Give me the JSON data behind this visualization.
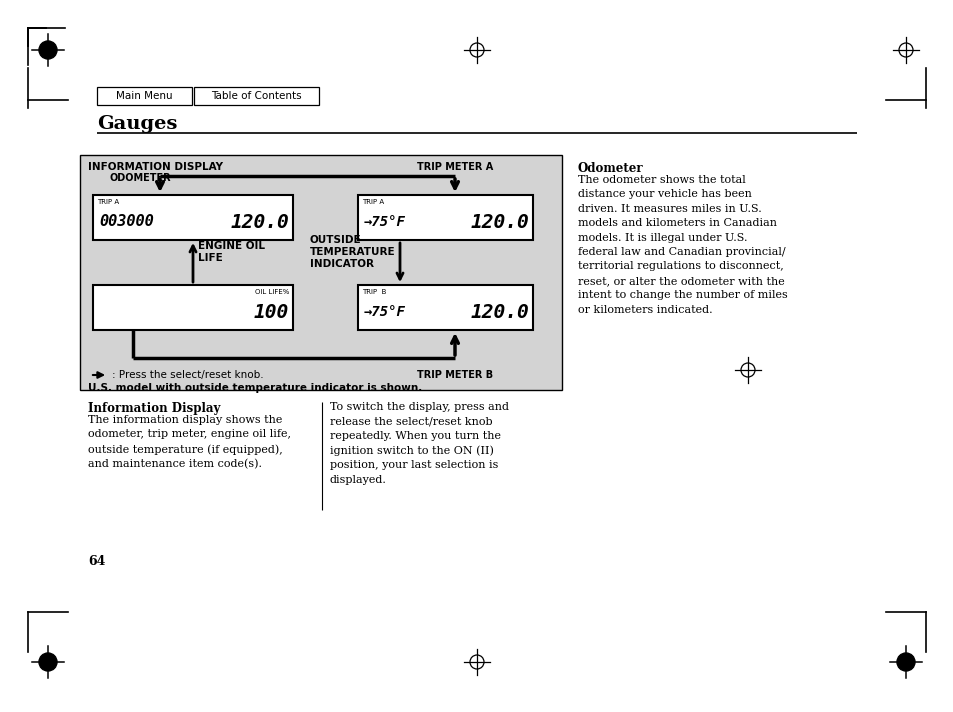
{
  "nav_buttons": [
    "Main Menu",
    "Table of Contents"
  ],
  "page_number": "64",
  "section_header": "Gauges",
  "diagram_label": "INFORMATION DISPLAY",
  "odometer_label": "ODOMETER",
  "trip_a_label": "TRIP METER A",
  "trip_b_label": "TRIP METER B",
  "engine_oil_label": "ENGINE OIL\nLIFE",
  "outside_temp_label": "OUTSIDE\nTEMPERATURE\nINDICATOR",
  "d1_odo": "003000",
  "d1_trip": "TRIP A",
  "d1_val": "120.0",
  "d2_temp": "→75°F",
  "d2_trip": "TRIP A",
  "d2_val": "120.0",
  "d3_label": "OIL LIFE%",
  "d3_val": "100",
  "d4_temp": "→75°F",
  "d4_trip": "TRIP  B",
  "d4_val": "120.0",
  "arrow_note": ": Press the select/reset knob.",
  "footnote": "U.S. model with outside temperature indicator is shown.",
  "info_title": "Information Display",
  "info_body1": "The information display shows the\nodometer, trip meter, engine oil life,\noutside temperature (if equipped),\nand maintenance item code(s).",
  "info_body2": "To switch the display, press and\nrelease the select/reset knob\nrepeatedly. When you turn the\nignition switch to the ON (II)\nposition, your last selection is\ndisplayed.",
  "odo_title": "Odometer",
  "odo_body": "The odometer shows the total\ndistance your vehicle has been\ndriven. It measures miles in U.S.\nmodels and kilometers in Canadian\nmodels. It is illegal under U.S.\nfederal law and Canadian provincial/\nterritorial regulations to disconnect,\nreset, or alter the odometer with the\nintent to change the number of miles\nor kilometers indicated.",
  "bg": "#ffffff",
  "diagram_bg": "#d3d3d3"
}
